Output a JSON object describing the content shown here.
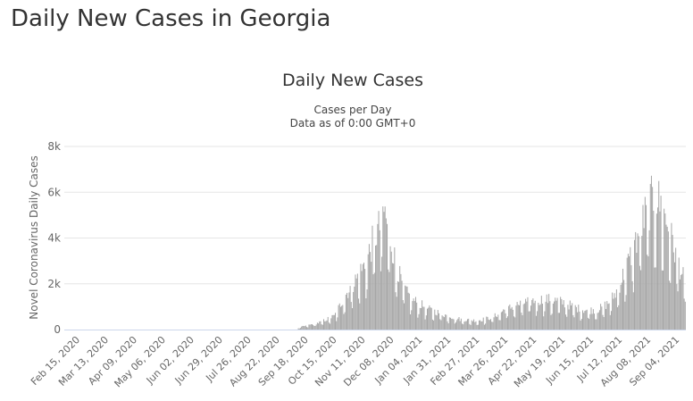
{
  "page": {
    "title": "Daily New Cases in Georgia"
  },
  "chart_data": {
    "type": "bar",
    "title": "Daily New Cases",
    "subtitle_lines": [
      "Cases per Day",
      "Data as of 0:00 GMT+0"
    ],
    "xlabel": "",
    "ylabel": "Novel Coronavirus Daily Cases",
    "ylim": [
      0,
      8000
    ],
    "yticks": [
      0,
      2000,
      4000,
      6000,
      8000
    ],
    "ytick_labels": [
      "0",
      "2k",
      "4k",
      "6k",
      "8k"
    ],
    "x_start": "2020-02-15",
    "x_end": "2021-09-24",
    "num_days": 588,
    "categories": [
      "Feb 15, 2020",
      "Mar 13, 2020",
      "Apr 09, 2020",
      "May 06, 2020",
      "Jun 02, 2020",
      "Jun 29, 2020",
      "Jul 26, 2020",
      "Aug 22, 2020",
      "Sep 18, 2020",
      "Oct 15, 2020",
      "Nov 11, 2020",
      "Dec 08, 2020",
      "Jan 04, 2021",
      "Jan 31, 2021",
      "Feb 27, 2021",
      "Mar 26, 2021",
      "Apr 22, 2021",
      "May 19, 2021",
      "Jun 15, 2021",
      "Jul 12, 2021",
      "Aug 08, 2021",
      "Sep 04, 2021"
    ],
    "category_day_index": [
      0,
      27,
      54,
      81,
      108,
      135,
      162,
      189,
      216,
      243,
      270,
      297,
      324,
      351,
      378,
      405,
      432,
      459,
      486,
      513,
      540,
      567
    ],
    "grid": true,
    "legend": "none",
    "bar_color": "#a6a6a6",
    "series": [
      {
        "name": "Daily Cases",
        "anchors_day_value": [
          [
            0,
            0
          ],
          [
            220,
            0
          ],
          [
            222,
            100
          ],
          [
            240,
            300
          ],
          [
            255,
            600
          ],
          [
            265,
            1500
          ],
          [
            275,
            2200
          ],
          [
            285,
            3000
          ],
          [
            292,
            4000
          ],
          [
            298,
            4600
          ],
          [
            302,
            5300
          ],
          [
            306,
            4500
          ],
          [
            312,
            3200
          ],
          [
            318,
            2200
          ],
          [
            324,
            1600
          ],
          [
            330,
            1300
          ],
          [
            345,
            900
          ],
          [
            360,
            650
          ],
          [
            375,
            450
          ],
          [
            390,
            400
          ],
          [
            405,
            550
          ],
          [
            415,
            850
          ],
          [
            425,
            1050
          ],
          [
            435,
            1200
          ],
          [
            445,
            1300
          ],
          [
            455,
            1350
          ],
          [
            465,
            1300
          ],
          [
            475,
            1150
          ],
          [
            485,
            950
          ],
          [
            495,
            850
          ],
          [
            505,
            900
          ],
          [
            515,
            1200
          ],
          [
            522,
            1700
          ],
          [
            530,
            2600
          ],
          [
            538,
            3600
          ],
          [
            545,
            4600
          ],
          [
            550,
            5200
          ],
          [
            555,
            5700
          ],
          [
            560,
            5900
          ],
          [
            565,
            5400
          ],
          [
            570,
            4700
          ],
          [
            576,
            3700
          ],
          [
            582,
            2800
          ],
          [
            587,
            2000
          ]
        ]
      }
    ]
  }
}
